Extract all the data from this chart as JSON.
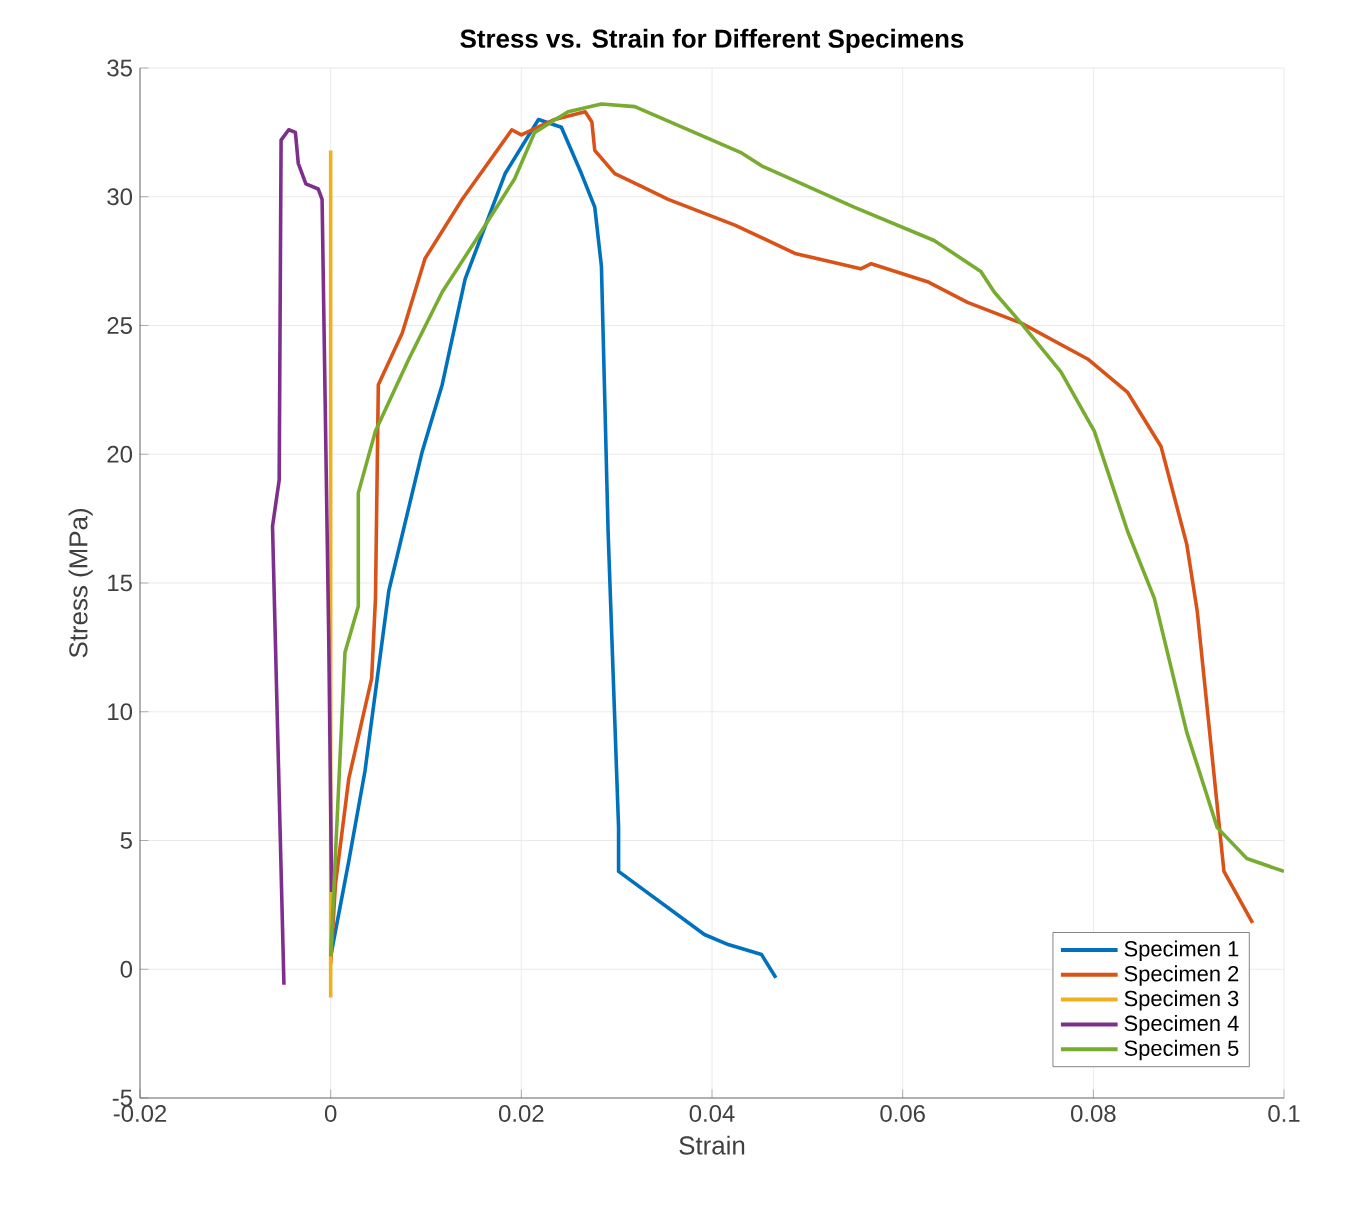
{
  "chart_data": {
    "type": "line",
    "title": "Stress vs. Strain for Different Specimens",
    "xlabel": "Strain",
    "ylabel": "Stress (MPa)",
    "xlim": [
      -0.02,
      0.1
    ],
    "xticks": [
      -0.02,
      0,
      0.02,
      0.04,
      0.06,
      0.08,
      0.1
    ],
    "ylim": [
      -5,
      35
    ],
    "yticks": [
      -5,
      0,
      5,
      10,
      15,
      20,
      25,
      30,
      35
    ],
    "grid": true,
    "legend": "bottom right",
    "line_style": "solid",
    "marker": "none",
    "series": [
      {
        "name": "Specimen 1",
        "color": "#0072bd",
        "x": [
          0,
          0.0019,
          0.0036,
          0.0061,
          0.0096,
          0.0117,
          0.0141,
          0.0183,
          0.0218,
          0.0242,
          0.0263,
          0.0277,
          0.0284,
          0.0291,
          0.0302,
          0.0302,
          0.0392,
          0.0417,
          0.0452,
          0.0467
        ],
        "values": [
          0.5,
          4.2,
          7.7,
          14.7,
          20.1,
          22.7,
          26.8,
          30.9,
          33.0,
          32.7,
          30.9,
          29.6,
          27.3,
          17.0,
          5.5,
          3.8,
          1.35,
          0.96,
          0.57,
          -0.33
        ]
      },
      {
        "name": "Specimen 2",
        "color": "#d95319",
        "x": [
          0,
          0.0005,
          0.0019,
          0.0043,
          0.0047,
          0.005,
          0.0075,
          0.0099,
          0.0138,
          0.019,
          0.02,
          0.0235,
          0.0267,
          0.0274,
          0.0277,
          0.0298,
          0.0326,
          0.0354,
          0.0424,
          0.0487,
          0.0556,
          0.0567,
          0.0626,
          0.0668,
          0.0724,
          0.0794,
          0.0836,
          0.0871,
          0.0898,
          0.0909,
          0.0937,
          0.0967
        ],
        "values": [
          0.2,
          3.3,
          7.4,
          11.3,
          14.4,
          22.7,
          24.7,
          27.6,
          29.9,
          32.6,
          32.4,
          33.0,
          33.3,
          32.9,
          31.8,
          30.9,
          30.4,
          29.9,
          28.9,
          27.8,
          27.2,
          27.4,
          26.7,
          25.9,
          25.1,
          23.7,
          22.4,
          20.3,
          16.5,
          13.9,
          3.8,
          1.8
        ]
      },
      {
        "name": "Specimen 3",
        "color": "#edb120",
        "x": [
          0,
          0,
          0
        ],
        "values": [
          -1.1,
          0.5,
          31.8
        ]
      },
      {
        "name": "Specimen 4",
        "color": "#7e2f8e",
        "x": [
          -0.0049,
          -0.0061,
          -0.0054,
          -0.0052,
          -0.0044,
          -0.0037,
          -0.0034,
          -0.0026,
          -0.0013,
          -0.0009,
          -0.0002,
          0.0001
        ],
        "values": [
          -0.6,
          17.2,
          19.0,
          32.2,
          32.6,
          32.5,
          31.3,
          30.5,
          30.3,
          29.9,
          12.8,
          3.0
        ]
      },
      {
        "name": "Specimen 5",
        "color": "#77ac30",
        "x": [
          0,
          0.0015,
          0.0029,
          0.0029,
          0.0047,
          0.0082,
          0.0117,
          0.0152,
          0.0193,
          0.0214,
          0.0249,
          0.0284,
          0.0319,
          0.0431,
          0.0452,
          0.0549,
          0.0633,
          0.0682,
          0.0696,
          0.0724,
          0.0766,
          0.0801,
          0.0836,
          0.0864,
          0.0898,
          0.093,
          0.0961,
          0.1
        ],
        "values": [
          0.5,
          12.3,
          14.1,
          18.5,
          20.9,
          23.7,
          26.3,
          28.3,
          30.7,
          32.5,
          33.3,
          33.6,
          33.5,
          31.7,
          31.2,
          29.6,
          28.3,
          27.1,
          26.3,
          25.1,
          23.2,
          20.9,
          17.0,
          14.4,
          9.2,
          5.5,
          4.3,
          3.8
        ]
      }
    ]
  }
}
